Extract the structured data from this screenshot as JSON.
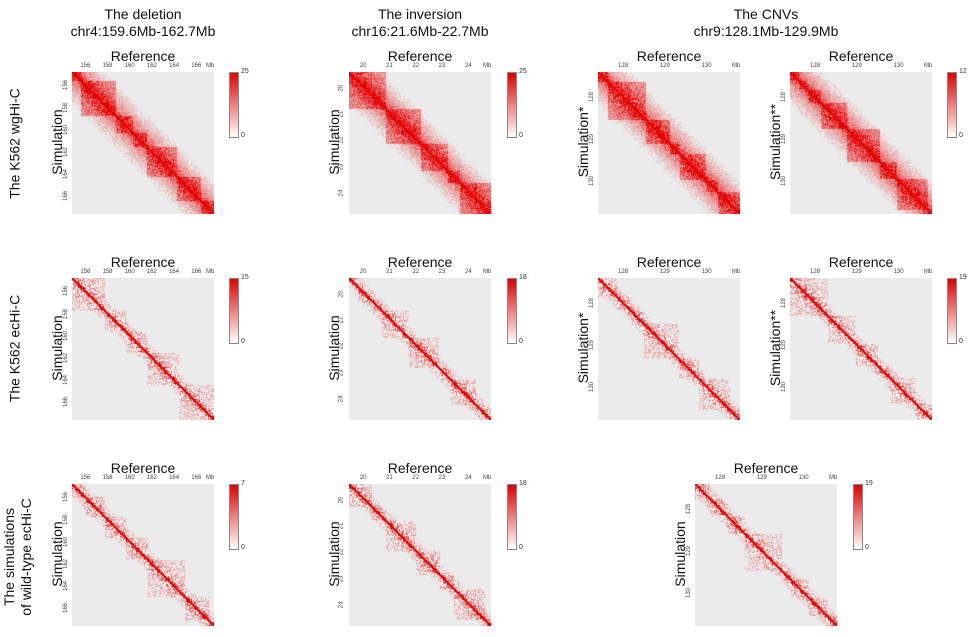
{
  "columns": [
    {
      "title": "The deletion",
      "subtitle": "chr4:159.6Mb-162.7Mb"
    },
    {
      "title": "The inversion",
      "subtitle": "chr16:21.6Mb-22.7Mb"
    },
    {
      "title": "The CNVs",
      "subtitle": "chr9:128.1Mb-129.9Mb"
    }
  ],
  "rows": [
    "The K562 wgHi-C",
    "The K562 ecHi-C",
    "The simulations\nof wild-type ecHi-C"
  ],
  "chart_data": {
    "type": "heatmap",
    "x_title": "Reference",
    "colormap": [
      "#ffffff",
      "#e00000"
    ],
    "background": "#ebebeb",
    "unit": "Mb",
    "panels": [
      {
        "row": 0,
        "col": "deletion",
        "ylabel": "Simulation",
        "xticks": [
          "156",
          "158",
          "160",
          "162",
          "164",
          "166"
        ],
        "yticks": [
          "156",
          "158",
          "160",
          "162",
          "164",
          "166"
        ],
        "colorbar": [
          0,
          25
        ]
      },
      {
        "row": 0,
        "col": "inversion",
        "ylabel": "Simulation",
        "xticks": [
          "20",
          "21",
          "22",
          "23",
          "24"
        ],
        "yticks": [
          "20",
          "21",
          "22",
          "23",
          "24"
        ],
        "colorbar": [
          0,
          25
        ]
      },
      {
        "row": 0,
        "col": "cnv",
        "ylabel": "Simulation*",
        "xticks": [
          "128",
          "129",
          "130"
        ],
        "yticks": [
          "128",
          "129",
          "130"
        ],
        "colorbar": null
      },
      {
        "row": 0,
        "col": "cnv",
        "ylabel": "Simulation**",
        "xticks": [
          "128",
          "129",
          "130"
        ],
        "yticks": [
          "128",
          "129",
          "130"
        ],
        "colorbar": [
          0,
          12
        ]
      },
      {
        "row": 1,
        "col": "deletion",
        "ylabel": "Simulation",
        "xticks": [
          "156",
          "158",
          "160",
          "162",
          "164",
          "166"
        ],
        "yticks": [
          "156",
          "158",
          "160",
          "162",
          "164",
          "166"
        ],
        "colorbar": [
          0,
          15
        ]
      },
      {
        "row": 1,
        "col": "inversion",
        "ylabel": "Simulation",
        "xticks": [
          "20",
          "21",
          "22",
          "23",
          "24"
        ],
        "yticks": [
          "20",
          "21",
          "22",
          "23",
          "24"
        ],
        "colorbar": [
          0,
          18
        ]
      },
      {
        "row": 1,
        "col": "cnv",
        "ylabel": "Simulation*",
        "xticks": [
          "128",
          "129",
          "130"
        ],
        "yticks": [
          "128",
          "129",
          "130"
        ],
        "colorbar": null
      },
      {
        "row": 1,
        "col": "cnv",
        "ylabel": "Simulation**",
        "xticks": [
          "128",
          "129",
          "130"
        ],
        "yticks": [
          "128",
          "129",
          "130"
        ],
        "colorbar": [
          0,
          19
        ]
      },
      {
        "row": 2,
        "col": "deletion",
        "ylabel": "Simulation",
        "xticks": [
          "156",
          "158",
          "160",
          "162",
          "164",
          "166"
        ],
        "yticks": [
          "156",
          "158",
          "160",
          "162",
          "164",
          "166"
        ],
        "colorbar": [
          0,
          7
        ]
      },
      {
        "row": 2,
        "col": "inversion",
        "ylabel": "Simulation",
        "xticks": [
          "20",
          "21",
          "22",
          "23",
          "24"
        ],
        "yticks": [
          "20",
          "21",
          "22",
          "23",
          "24"
        ],
        "colorbar": [
          0,
          18
        ]
      },
      {
        "row": 2,
        "col": "cnv",
        "ylabel": "Simulation",
        "xticks": [
          "128",
          "129",
          "130"
        ],
        "yticks": [
          "128",
          "129",
          "130"
        ],
        "colorbar": [
          0,
          19
        ]
      }
    ]
  }
}
